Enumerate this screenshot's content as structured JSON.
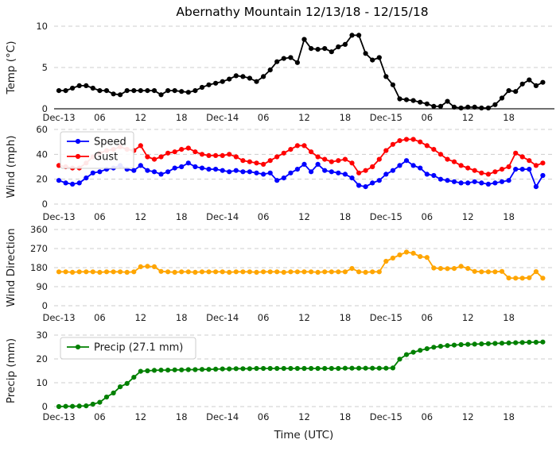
{
  "figure": {
    "title": "Abernathy Mountain 12/13/18 - 12/15/18",
    "xlabel": "Time (UTC)",
    "x_unit": "hour",
    "x_start": "Dec-13 00:00",
    "hours_span": 72,
    "x_tick_hours": [
      0,
      6,
      12,
      18,
      24,
      30,
      36,
      42,
      48,
      54,
      60,
      66
    ],
    "x_tick_labels": [
      "Dec-13",
      "06",
      "12",
      "18",
      "Dec-14",
      "06",
      "12",
      "18",
      "Dec-15",
      "06",
      "12",
      "18"
    ],
    "grid": "horizontal dashed",
    "grid_color": "#cccccc",
    "background_color": "#ffffff"
  },
  "chart_data": [
    {
      "type": "line",
      "id": "temp",
      "ylabel": "Temp (°C)",
      "ylim": [
        0,
        10
      ],
      "yticks": [
        0,
        5,
        10
      ],
      "solid_baseline": true,
      "legend": null,
      "series": [
        {
          "key": "temp",
          "name": "Temp",
          "color": "#000000",
          "values": [
            2.2,
            2.2,
            2.5,
            2.8,
            2.8,
            2.5,
            2.2,
            2.2,
            1.8,
            1.7,
            2.2,
            2.2,
            2.2,
            2.2,
            2.2,
            1.7,
            2.2,
            2.2,
            2.1,
            2.0,
            2.2,
            2.6,
            2.9,
            3.1,
            3.3,
            3.6,
            4.0,
            3.9,
            3.7,
            3.3,
            3.9,
            4.7,
            5.7,
            6.1,
            6.2,
            5.6,
            8.4,
            7.3,
            7.2,
            7.3,
            6.9,
            7.5,
            7.8,
            8.9,
            8.9,
            6.7,
            5.9,
            6.2,
            3.9,
            2.9,
            1.2,
            1.1,
            1.0,
            0.8,
            0.6,
            0.3,
            0.3,
            0.9,
            0.2,
            0.1,
            0.2,
            0.2,
            0.1,
            0.1,
            0.5,
            1.3,
            2.2,
            2.1,
            3.0,
            3.5,
            2.8,
            3.2
          ]
        }
      ]
    },
    {
      "type": "line",
      "id": "wind",
      "ylabel": "Wind (mph)",
      "ylim": [
        0,
        60
      ],
      "yticks": [
        0,
        20,
        40,
        60
      ],
      "solid_baseline": false,
      "legend": {
        "position": "upper left",
        "labels": [
          "Speed",
          "Gust"
        ]
      },
      "series": [
        {
          "key": "speed",
          "name": "Speed",
          "color": "#0000ff",
          "values": [
            19,
            17,
            16,
            17,
            21,
            25,
            26,
            28,
            29,
            31,
            28,
            27,
            31,
            27,
            26,
            24,
            26,
            29,
            30,
            33,
            30,
            29,
            28,
            28,
            27,
            26,
            27,
            26,
            26,
            25,
            24,
            25,
            19,
            21,
            25,
            28,
            32,
            26,
            32,
            27,
            26,
            25,
            24,
            21,
            15,
            14,
            17,
            19,
            24,
            27,
            31,
            35,
            31,
            29,
            24,
            23,
            20,
            19,
            18,
            17,
            17,
            18,
            17,
            16,
            17,
            18,
            19,
            28,
            28,
            28,
            14,
            23
          ]
        },
        {
          "key": "gust",
          "name": "Gust",
          "color": "#ff0000",
          "values": [
            31,
            30,
            29,
            29,
            33,
            38,
            41,
            43,
            44,
            46,
            44,
            43,
            47,
            38,
            36,
            38,
            41,
            42,
            44,
            45,
            42,
            40,
            39,
            39,
            39,
            40,
            38,
            35,
            34,
            33,
            32,
            35,
            38,
            41,
            44,
            47,
            47,
            42,
            38,
            36,
            34,
            35,
            36,
            33,
            25,
            27,
            30,
            36,
            43,
            48,
            51,
            52,
            52,
            50,
            47,
            44,
            40,
            36,
            34,
            31,
            29,
            27,
            25,
            24,
            26,
            28,
            30,
            41,
            38,
            35,
            31,
            33
          ]
        }
      ]
    },
    {
      "type": "line",
      "id": "wind_direction",
      "ylabel": "Wind Direction",
      "ylim": [
        0,
        360
      ],
      "yticks": [
        0,
        90,
        180,
        270,
        360
      ],
      "solid_baseline": false,
      "legend": null,
      "series": [
        {
          "key": "direction",
          "name": "Wind Direction",
          "color": "#ffa500",
          "values": [
            160,
            160,
            158,
            160,
            160,
            160,
            158,
            160,
            160,
            160,
            158,
            160,
            184,
            186,
            184,
            162,
            160,
            158,
            160,
            160,
            158,
            160,
            160,
            160,
            160,
            158,
            160,
            160,
            160,
            158,
            160,
            160,
            160,
            158,
            160,
            160,
            160,
            160,
            158,
            160,
            160,
            160,
            160,
            176,
            160,
            158,
            160,
            160,
            210,
            225,
            240,
            253,
            248,
            232,
            228,
            178,
            176,
            175,
            176,
            186,
            176,
            162,
            160,
            160,
            160,
            162,
            131,
            130,
            130,
            132,
            161,
            130
          ]
        }
      ]
    },
    {
      "type": "line",
      "id": "precip",
      "ylabel": "Precip (mm)",
      "ylim": [
        0,
        30
      ],
      "yticks": [
        0,
        10,
        20,
        30
      ],
      "solid_baseline": false,
      "legend": {
        "position": "upper left",
        "labels": [
          "Precip (27.1 mm)"
        ]
      },
      "total_mm": 27.1,
      "series": [
        {
          "key": "precip",
          "name": "Precip (27.1 mm)",
          "color": "#008000",
          "values": [
            0.0,
            0.1,
            0.1,
            0.2,
            0.3,
            1.0,
            1.8,
            4.0,
            5.7,
            8.3,
            9.7,
            12.3,
            14.8,
            15.0,
            15.2,
            15.3,
            15.3,
            15.4,
            15.4,
            15.5,
            15.5,
            15.6,
            15.6,
            15.7,
            15.8,
            15.8,
            15.9,
            15.9,
            15.9,
            16.0,
            16.0,
            16.0,
            16.0,
            16.0,
            16.0,
            16.0,
            16.0,
            16.0,
            16.0,
            16.0,
            16.0,
            16.0,
            16.1,
            16.1,
            16.1,
            16.1,
            16.1,
            16.1,
            16.1,
            16.2,
            19.9,
            21.8,
            22.8,
            23.6,
            24.3,
            24.9,
            25.3,
            25.6,
            25.8,
            26.0,
            26.1,
            26.2,
            26.3,
            26.4,
            26.5,
            26.6,
            26.7,
            26.8,
            26.9,
            27.0,
            27.0,
            27.1
          ]
        }
      ]
    }
  ]
}
